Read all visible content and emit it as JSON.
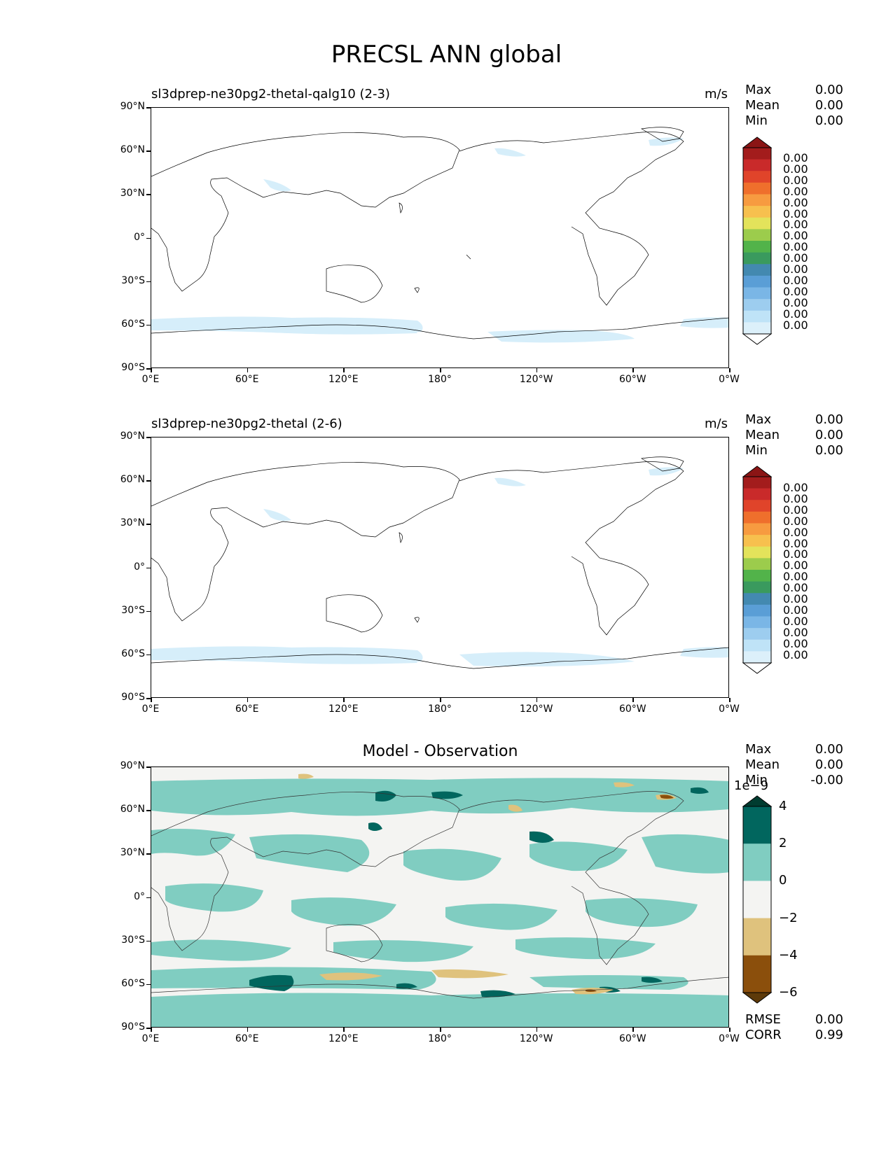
{
  "figure": {
    "title": "PRECSL ANN global"
  },
  "axes": {
    "lat_labels": [
      "90°N",
      "60°N",
      "30°N",
      "0°",
      "30°S",
      "60°S",
      "90°S"
    ],
    "lon_labels": [
      "0°E",
      "60°E",
      "120°E",
      "180°",
      "120°W",
      "60°W",
      "0°W"
    ]
  },
  "panels": [
    {
      "title": "sl3dprep-ne30pg2-thetal-qalg10 (2-3)",
      "units": "m/s",
      "stats": {
        "max_label": "Max",
        "max": "0.00",
        "mean_label": "Mean",
        "mean": "0.00",
        "min_label": "Min",
        "min": "0.00"
      },
      "colorbar_labels": [
        "0.00",
        "0.00",
        "0.00",
        "0.00",
        "0.00",
        "0.00",
        "0.00",
        "0.00",
        "0.00",
        "0.00",
        "0.00",
        "0.00",
        "0.00",
        "0.00",
        "0.00",
        "0.00"
      ]
    },
    {
      "title": "sl3dprep-ne30pg2-thetal (2-6)",
      "units": "m/s",
      "stats": {
        "max_label": "Max",
        "max": "0.00",
        "mean_label": "Mean",
        "mean": "0.00",
        "min_label": "Min",
        "min": "0.00"
      },
      "colorbar_labels": [
        "0.00",
        "0.00",
        "0.00",
        "0.00",
        "0.00",
        "0.00",
        "0.00",
        "0.00",
        "0.00",
        "0.00",
        "0.00",
        "0.00",
        "0.00",
        "0.00",
        "0.00",
        "0.00"
      ]
    },
    {
      "title": "Model - Observation",
      "units": "",
      "stats": {
        "max_label": "Max",
        "max": "0.00",
        "mean_label": "Mean",
        "mean": "0.00",
        "min_label": "Min",
        "min": "-0.00"
      },
      "colorbar_scale": "1e−9",
      "colorbar_labels": [
        "4",
        "2",
        "0",
        "−2",
        "−4",
        "−6"
      ],
      "extra_stats": {
        "rmse_label": "RMSE",
        "rmse": "0.00",
        "corr_label": "CORR",
        "corr": "0.99"
      }
    }
  ],
  "colors": {
    "seq_colorbar": [
      "#ffffff",
      "#dcf0fa",
      "#bfe3f7",
      "#9dcdef",
      "#7ab6e6",
      "#5a9ed6",
      "#4389b0",
      "#3a9a5e",
      "#52b34a",
      "#9ccc4c",
      "#e3e35b",
      "#f7c04e",
      "#f79b40",
      "#ef6f2c",
      "#e0442a",
      "#c92a2a",
      "#a31c1c",
      "#8b1515"
    ],
    "diff_colorbar": [
      "#5d3a0a",
      "#8b4f0c",
      "#dfc27d",
      "#f4f4f2",
      "#80cdc1",
      "#01665e",
      "#003c30"
    ]
  }
}
